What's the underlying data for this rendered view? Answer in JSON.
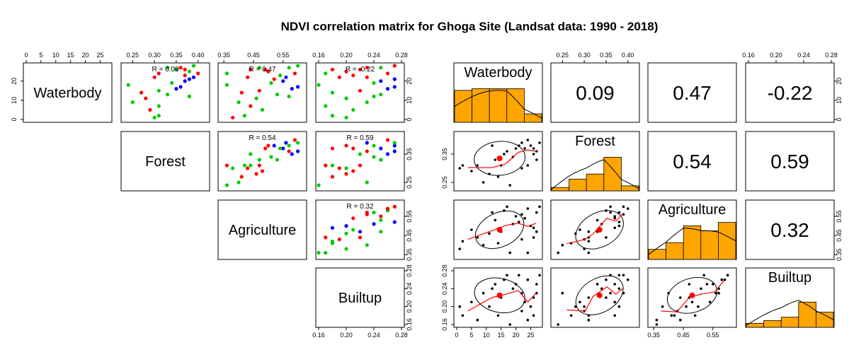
{
  "title": "NDVI correlation matrix for Ghoga Site (Landsat data: 1990 - 2018)",
  "chart_data": [
    {
      "type": "scatter",
      "name_hint": "left pairs matrix",
      "variables": [
        "Waterbody",
        "Forest",
        "Agriculture",
        "Builtup"
      ],
      "ranges": {
        "Waterbody": [
          0,
          28
        ],
        "Forest": [
          0.23,
          0.42
        ],
        "Agriculture": [
          0.34,
          0.62
        ],
        "Builtup": [
          0.16,
          0.28
        ]
      },
      "ticks": {
        "Waterbody_top": [
          "0",
          "5",
          "10",
          "15",
          "20",
          "25"
        ],
        "Waterbody_left": [
          "0",
          "10",
          "20"
        ],
        "Forest_top": [
          "0.25",
          "0.30",
          "0.35",
          "0.40"
        ],
        "Agriculture_top": [
          "0.35",
          "0.45",
          "0.55"
        ],
        "Builtup_top": [
          "0.16",
          "0.20",
          "0.24",
          "0.28"
        ],
        "Builtup_bottom": [
          "0.16",
          "0.20",
          "0.24",
          "0.28"
        ],
        "right_Waterbody": [
          "0",
          "10",
          "20"
        ],
        "right_Forest": [
          "0.25",
          "0.35"
        ],
        "right_Agriculture": [
          "0.35",
          "0.45",
          "0.55"
        ],
        "right_Builtup": [
          "0.16",
          "0.20",
          "0.24",
          "0.28"
        ]
      },
      "r_labels": [
        {
          "pair": [
            "Waterbody",
            "Forest"
          ],
          "text": "R = 0.09"
        },
        {
          "pair": [
            "Waterbody",
            "Agriculture"
          ],
          "text": "R = 0.47"
        },
        {
          "pair": [
            "Waterbody",
            "Builtup"
          ],
          "text": "R = -0.22"
        },
        {
          "pair": [
            "Forest",
            "Agriculture"
          ],
          "text": "R = 0.54"
        },
        {
          "pair": [
            "Forest",
            "Builtup"
          ],
          "text": "R = 0.59"
        },
        {
          "pair": [
            "Agriculture",
            "Builtup"
          ],
          "text": "R = 0.32"
        }
      ],
      "point_colors": [
        "#00cc00",
        "#ff0000",
        "#0000ff"
      ],
      "scatter_points": {
        "Waterbody_Forest": [
          [
            1,
            0.3,
            0
          ],
          [
            2,
            0.31,
            0
          ],
          [
            5,
            0.29,
            1
          ],
          [
            7,
            0.31,
            0
          ],
          [
            9,
            0.25,
            0
          ],
          [
            11,
            0.28,
            1
          ],
          [
            13,
            0.33,
            0
          ],
          [
            15,
            0.31,
            0
          ],
          [
            16,
            0.35,
            2
          ],
          [
            17,
            0.36,
            2
          ],
          [
            19,
            0.34,
            0
          ],
          [
            20,
            0.37,
            2
          ],
          [
            21,
            0.38,
            2
          ],
          [
            22,
            0.39,
            2
          ],
          [
            23,
            0.37,
            1
          ],
          [
            24,
            0.4,
            1
          ],
          [
            25,
            0.38,
            0
          ],
          [
            26,
            0.35,
            0
          ],
          [
            27,
            0.33,
            0
          ],
          [
            28,
            0.39,
            0
          ],
          [
            22,
            0.3,
            1
          ],
          [
            24,
            0.31,
            1
          ],
          [
            14,
            0.27,
            1
          ],
          [
            18,
            0.24,
            0
          ],
          [
            12,
            0.38,
            0
          ],
          [
            26,
            0.37,
            1
          ],
          [
            27,
            0.36,
            1
          ]
        ],
        "Waterbody_Agriculture": [
          [
            1,
            0.38,
            1
          ],
          [
            2,
            0.42,
            0
          ],
          [
            5,
            0.48,
            0
          ],
          [
            7,
            0.44,
            1
          ],
          [
            9,
            0.4,
            0
          ],
          [
            11,
            0.46,
            0
          ],
          [
            13,
            0.53,
            0
          ],
          [
            15,
            0.47,
            1
          ],
          [
            16,
            0.58,
            2
          ],
          [
            17,
            0.6,
            2
          ],
          [
            19,
            0.51,
            0
          ],
          [
            20,
            0.55,
            2
          ],
          [
            21,
            0.52,
            1
          ],
          [
            22,
            0.56,
            2
          ],
          [
            23,
            0.54,
            0
          ],
          [
            24,
            0.59,
            1
          ],
          [
            25,
            0.5,
            1
          ],
          [
            26,
            0.44,
            1
          ],
          [
            27,
            0.47,
            0
          ],
          [
            28,
            0.6,
            0
          ],
          [
            22,
            0.43,
            1
          ],
          [
            24,
            0.36,
            0
          ],
          [
            14,
            0.41,
            1
          ],
          [
            18,
            0.36,
            0
          ],
          [
            12,
            0.57,
            0
          ],
          [
            26,
            0.49,
            1
          ],
          [
            27,
            0.57,
            0
          ]
        ],
        "Waterbody_Builtup": [
          [
            1,
            0.2,
            0
          ],
          [
            2,
            0.18,
            0
          ],
          [
            5,
            0.21,
            0
          ],
          [
            7,
            0.17,
            0
          ],
          [
            9,
            0.23,
            0
          ],
          [
            11,
            0.2,
            0
          ],
          [
            13,
            0.25,
            0
          ],
          [
            15,
            0.22,
            1
          ],
          [
            16,
            0.26,
            2
          ],
          [
            17,
            0.27,
            2
          ],
          [
            19,
            0.24,
            0
          ],
          [
            20,
            0.25,
            2
          ],
          [
            21,
            0.27,
            2
          ],
          [
            22,
            0.23,
            1
          ],
          [
            23,
            0.21,
            1
          ],
          [
            24,
            0.26,
            1
          ],
          [
            25,
            0.2,
            1
          ],
          [
            26,
            0.22,
            1
          ],
          [
            27,
            0.25,
            0
          ],
          [
            28,
            0.27,
            1
          ],
          [
            22,
            0.19,
            1
          ],
          [
            24,
            0.17,
            0
          ],
          [
            14,
            0.18,
            0
          ],
          [
            18,
            0.16,
            0
          ],
          [
            12,
            0.24,
            0
          ],
          [
            26,
            0.18,
            1
          ],
          [
            27,
            0.23,
            1
          ]
        ],
        "Forest_Agriculture": [
          [
            0.3,
            0.38,
            0
          ],
          [
            0.31,
            0.42,
            0
          ],
          [
            0.29,
            0.48,
            1
          ],
          [
            0.31,
            0.44,
            0
          ],
          [
            0.25,
            0.4,
            0
          ],
          [
            0.28,
            0.46,
            1
          ],
          [
            0.33,
            0.53,
            0
          ],
          [
            0.31,
            0.47,
            1
          ],
          [
            0.35,
            0.58,
            2
          ],
          [
            0.36,
            0.6,
            2
          ],
          [
            0.34,
            0.51,
            0
          ],
          [
            0.37,
            0.55,
            2
          ],
          [
            0.38,
            0.52,
            2
          ],
          [
            0.39,
            0.56,
            2
          ],
          [
            0.37,
            0.54,
            0
          ],
          [
            0.4,
            0.59,
            1
          ],
          [
            0.38,
            0.5,
            1
          ],
          [
            0.35,
            0.44,
            0
          ],
          [
            0.33,
            0.47,
            0
          ],
          [
            0.39,
            0.6,
            0
          ],
          [
            0.3,
            0.43,
            1
          ],
          [
            0.31,
            0.36,
            1
          ],
          [
            0.27,
            0.41,
            1
          ],
          [
            0.24,
            0.36,
            0
          ],
          [
            0.38,
            0.57,
            0
          ],
          [
            0.37,
            0.49,
            1
          ],
          [
            0.36,
            0.57,
            1
          ]
        ],
        "Forest_Builtup": [
          [
            0.3,
            0.2,
            0
          ],
          [
            0.31,
            0.18,
            0
          ],
          [
            0.29,
            0.21,
            1
          ],
          [
            0.31,
            0.17,
            0
          ],
          [
            0.25,
            0.23,
            0
          ],
          [
            0.28,
            0.2,
            1
          ],
          [
            0.33,
            0.25,
            0
          ],
          [
            0.31,
            0.22,
            1
          ],
          [
            0.35,
            0.26,
            2
          ],
          [
            0.36,
            0.27,
            2
          ],
          [
            0.34,
            0.24,
            0
          ],
          [
            0.37,
            0.25,
            2
          ],
          [
            0.38,
            0.27,
            2
          ],
          [
            0.39,
            0.23,
            2
          ],
          [
            0.37,
            0.21,
            1
          ],
          [
            0.4,
            0.26,
            1
          ],
          [
            0.38,
            0.2,
            1
          ],
          [
            0.35,
            0.22,
            0
          ],
          [
            0.33,
            0.25,
            0
          ],
          [
            0.39,
            0.27,
            0
          ],
          [
            0.3,
            0.19,
            1
          ],
          [
            0.31,
            0.17,
            1
          ],
          [
            0.27,
            0.18,
            1
          ],
          [
            0.24,
            0.16,
            0
          ],
          [
            0.38,
            0.24,
            0
          ],
          [
            0.37,
            0.18,
            1
          ],
          [
            0.36,
            0.23,
            1
          ]
        ],
        "Agriculture_Builtup": [
          [
            0.38,
            0.2,
            0
          ],
          [
            0.42,
            0.18,
            0
          ],
          [
            0.48,
            0.21,
            0
          ],
          [
            0.44,
            0.17,
            1
          ],
          [
            0.4,
            0.23,
            0
          ],
          [
            0.46,
            0.2,
            0
          ],
          [
            0.53,
            0.25,
            0
          ],
          [
            0.47,
            0.22,
            2
          ],
          [
            0.58,
            0.26,
            0
          ],
          [
            0.6,
            0.27,
            0
          ],
          [
            0.51,
            0.24,
            2
          ],
          [
            0.55,
            0.25,
            1
          ],
          [
            0.52,
            0.27,
            2
          ],
          [
            0.56,
            0.23,
            1
          ],
          [
            0.54,
            0.21,
            1
          ],
          [
            0.59,
            0.26,
            1
          ],
          [
            0.5,
            0.2,
            2
          ],
          [
            0.44,
            0.22,
            1
          ],
          [
            0.47,
            0.25,
            0
          ],
          [
            0.6,
            0.27,
            1
          ],
          [
            0.43,
            0.19,
            1
          ],
          [
            0.36,
            0.17,
            0
          ],
          [
            0.41,
            0.18,
            0
          ],
          [
            0.36,
            0.16,
            0
          ],
          [
            0.57,
            0.24,
            0
          ],
          [
            0.49,
            0.18,
            2
          ],
          [
            0.57,
            0.23,
            1
          ]
        ]
      }
    },
    {
      "type": "scatter",
      "name_hint": "right pairs.panels matrix",
      "correlations": {
        "Waterbody_Forest": "0.09",
        "Waterbody_Agriculture": "0.47",
        "Waterbody_Builtup": "-0.22",
        "Forest_Agriculture": "0.54",
        "Forest_Builtup": "0.59",
        "Agriculture_Builtup": "0.32"
      },
      "histograms": {
        "Waterbody": [
          0.95,
          1.0,
          1.0,
          1.0,
          0.25
        ],
        "Forest": [
          0.1,
          0.35,
          0.5,
          1.0,
          0.15
        ],
        "Agriculture": [
          0.3,
          0.5,
          1.0,
          0.85,
          1.1
        ],
        "Builtup": [
          0.12,
          0.2,
          0.3,
          0.75,
          0.45
        ]
      },
      "hist_color": "#ffa500",
      "smooth_color": "#ff0000",
      "means": {
        "Waterbody": 14.5,
        "Forest": 0.335,
        "Agriculture": 0.48,
        "Builtup": 0.225
      }
    }
  ]
}
